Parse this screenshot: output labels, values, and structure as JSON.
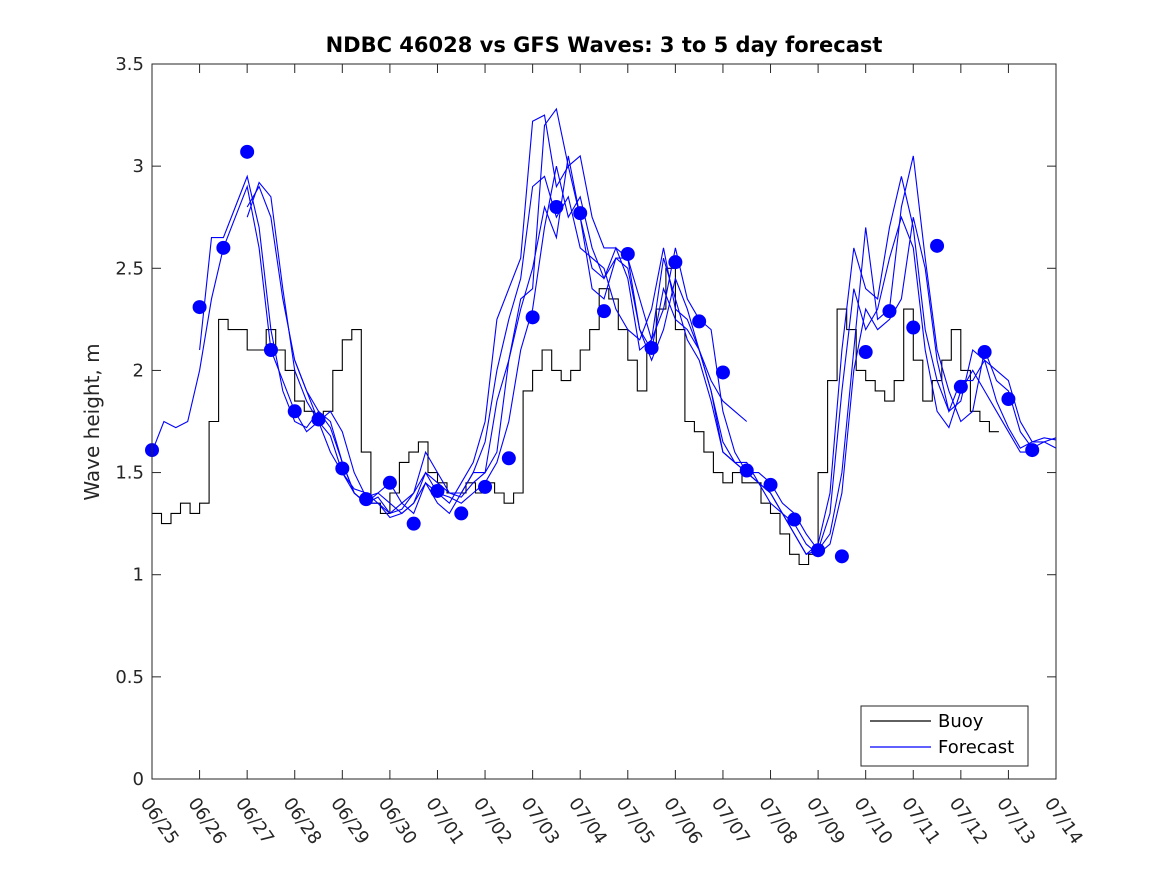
{
  "chart_data": {
    "type": "line",
    "title": "NDBC 46028 vs GFS Waves: 3 to 5 day forecast",
    "xlabel": "",
    "ylabel": "Wave height, m",
    "xlim": [
      "06/25",
      "07/14"
    ],
    "ylim": [
      0,
      3.5
    ],
    "x_ticks": [
      "06/25",
      "06/26",
      "06/27",
      "06/28",
      "06/29",
      "06/30",
      "07/01",
      "07/02",
      "07/03",
      "07/04",
      "07/05",
      "07/06",
      "07/07",
      "07/08",
      "07/09",
      "07/10",
      "07/11",
      "07/12",
      "07/13",
      "07/14"
    ],
    "y_ticks": [
      "0",
      "0.5",
      "1",
      "1.5",
      "2",
      "2.5",
      "3",
      "3.5"
    ],
    "grid": false,
    "legend_position": "bottom-right",
    "colors": {
      "buoy": "#000000",
      "forecast": "#0000ff",
      "axes": "#262626"
    },
    "series": [
      {
        "name": "Buoy",
        "style": "line",
        "x": [
          0,
          0.2,
          0.4,
          0.6,
          0.8,
          1.0,
          1.2,
          1.4,
          1.6,
          1.8,
          2.0,
          2.2,
          2.4,
          2.6,
          2.8,
          3.0,
          3.2,
          3.4,
          3.6,
          3.8,
          4.0,
          4.2,
          4.4,
          4.6,
          4.8,
          5.0,
          5.2,
          5.4,
          5.6,
          5.8,
          6.0,
          6.2,
          6.4,
          6.6,
          6.8,
          7.0,
          7.2,
          7.4,
          7.6,
          7.8,
          8.0,
          8.2,
          8.4,
          8.6,
          8.8,
          9.0,
          9.2,
          9.4,
          9.6,
          9.8,
          10.0,
          10.2,
          10.4,
          10.6,
          10.8,
          11.0,
          11.2,
          11.4,
          11.6,
          11.8,
          12.0,
          12.2,
          12.4,
          12.6,
          12.8,
          13.0,
          13.2,
          13.4,
          13.6,
          13.8,
          14.0,
          14.2,
          14.4,
          14.6,
          14.8,
          15.0,
          15.2,
          15.4,
          15.6,
          15.8,
          16.0,
          16.2,
          16.4,
          16.6,
          16.8,
          17.0,
          17.2,
          17.4,
          17.6,
          17.8,
          18.0,
          18.2,
          18.4,
          18.6,
          18.8,
          19.0
        ],
        "values": [
          1.3,
          1.25,
          1.3,
          1.35,
          1.3,
          1.35,
          1.75,
          2.25,
          2.2,
          2.2,
          2.1,
          2.1,
          2.2,
          2.1,
          2.0,
          1.85,
          1.8,
          1.75,
          1.8,
          2.0,
          2.15,
          2.2,
          1.6,
          1.35,
          1.3,
          1.4,
          1.55,
          1.6,
          1.65,
          1.5,
          1.45,
          1.4,
          1.4,
          1.45,
          1.4,
          1.45,
          1.4,
          1.35,
          1.4,
          1.9,
          2.0,
          2.1,
          2.0,
          1.95,
          2.0,
          2.1,
          2.2,
          2.4,
          2.35,
          2.2,
          2.05,
          1.9,
          2.1,
          2.3,
          2.5,
          2.2,
          1.75,
          1.7,
          1.6,
          1.5,
          1.45,
          1.5,
          1.45,
          1.45,
          1.35,
          1.3,
          1.2,
          1.1,
          1.05,
          1.1,
          1.5,
          1.95,
          2.3,
          2.2,
          2.0,
          1.95,
          1.9,
          1.85,
          1.95,
          2.3,
          2.05,
          1.85,
          1.95,
          2.05,
          2.2,
          2.0,
          1.8,
          1.75,
          1.7,
          1.7,
          null,
          null,
          null,
          null,
          null,
          null
        ]
      },
      {
        "name": "Forecast",
        "style": "line",
        "x": [
          0,
          0.25,
          0.5,
          0.75,
          1.0,
          1.25,
          1.5,
          1.75,
          2.0,
          2.25,
          2.5,
          2.75,
          3.0,
          3.25,
          3.5,
          3.75,
          4.0,
          4.25,
          4.5,
          4.75,
          5.0,
          5.25,
          5.5,
          5.75,
          6.0,
          6.25,
          6.5,
          6.75,
          7.0,
          7.25,
          7.5,
          7.75,
          8.0,
          8.25,
          8.5,
          8.75,
          9.0,
          9.25,
          9.5,
          9.75,
          10.0,
          10.25,
          10.5,
          10.75,
          11.0,
          11.25,
          11.5,
          11.75,
          12.0,
          12.25,
          12.5,
          12.75,
          13.0,
          13.25,
          13.5,
          13.75,
          14.0,
          14.25,
          14.5,
          14.75,
          15.0,
          15.25,
          15.5,
          15.75,
          16.0,
          16.25,
          16.5,
          16.75,
          17.0,
          17.25,
          17.5,
          17.75,
          18.0,
          18.25,
          18.5,
          18.75,
          19.0
        ],
        "values": [
          1.6,
          1.75,
          1.72,
          1.75,
          2.0,
          2.35,
          2.6,
          2.75,
          2.9,
          2.6,
          2.1,
          1.95,
          1.8,
          1.7,
          1.75,
          1.6,
          1.5,
          1.42,
          1.4,
          1.35,
          1.28,
          1.3,
          1.35,
          1.45,
          1.4,
          1.38,
          1.35,
          1.4,
          1.45,
          1.55,
          1.75,
          2.1,
          2.3,
          2.7,
          3.0,
          2.75,
          2.85,
          2.6,
          2.45,
          2.55,
          2.5,
          2.2,
          2.05,
          2.2,
          2.45,
          2.3,
          2.1,
          1.9,
          1.6,
          1.55,
          1.5,
          1.45,
          1.4,
          1.3,
          1.25,
          1.15,
          1.1,
          1.15,
          1.4,
          2.0,
          2.3,
          2.2,
          2.25,
          2.35,
          2.75,
          2.5,
          2.05,
          1.8,
          1.95,
          1.95,
          2.05,
          2.0,
          1.95,
          1.75,
          1.65,
          1.65,
          1.62
        ]
      },
      {
        "name": "Forecast",
        "style": "line",
        "x": [
          1.0,
          1.25,
          1.5,
          1.75,
          2.0,
          2.25,
          2.5,
          2.75,
          3.0,
          3.25,
          3.5,
          3.75,
          4.0,
          4.25,
          4.5,
          4.75,
          5.0,
          5.25,
          5.5,
          5.75,
          6.0,
          6.25,
          6.5,
          6.75,
          7.0,
          7.25,
          7.5,
          7.75,
          8.0,
          8.25,
          8.5,
          8.75,
          9.0,
          9.25,
          9.5,
          9.75,
          10.0,
          10.25,
          10.5,
          10.75,
          11.0,
          11.25,
          11.5,
          11.75,
          12.0,
          12.25,
          12.5,
          12.75,
          13.0,
          13.25,
          13.5,
          13.75,
          14.0,
          14.25,
          14.5,
          14.75,
          15.0,
          15.25,
          15.5,
          15.75,
          16.0,
          16.25,
          16.5,
          16.75,
          17.0,
          17.25,
          17.5,
          17.75,
          18.0,
          18.25,
          18.5,
          18.75,
          19.0
        ],
        "values": [
          2.1,
          2.65,
          2.65,
          2.8,
          2.95,
          2.7,
          2.2,
          1.9,
          1.75,
          1.72,
          1.8,
          1.72,
          1.55,
          1.4,
          1.35,
          1.35,
          1.3,
          1.35,
          1.4,
          1.5,
          1.45,
          1.4,
          1.38,
          1.45,
          1.5,
          1.6,
          2.05,
          2.35,
          2.4,
          3.2,
          3.28,
          3.0,
          3.05,
          2.75,
          2.6,
          2.6,
          2.55,
          2.35,
          2.15,
          2.3,
          2.6,
          2.35,
          2.25,
          2.2,
          1.8,
          1.6,
          1.5,
          1.5,
          1.45,
          1.35,
          1.3,
          1.2,
          1.12,
          1.2,
          1.5,
          2.1,
          2.7,
          2.25,
          2.3,
          2.8,
          3.05,
          2.55,
          2.1,
          1.9,
          1.75,
          1.8,
          2.1,
          1.95,
          1.9,
          1.7,
          1.62,
          1.65,
          1.67
        ]
      },
      {
        "name": "Forecast",
        "style": "line",
        "x": [
          2.0,
          2.25,
          2.5,
          2.75,
          3.0,
          3.25,
          3.5,
          3.75,
          4.0,
          4.25,
          4.5,
          4.75,
          5.0,
          5.25,
          5.5,
          5.75,
          6.0,
          6.25,
          6.5,
          6.75,
          7.0,
          7.25,
          7.5,
          7.75,
          8.0,
          8.25,
          8.5,
          8.75,
          9.0,
          9.25,
          9.5,
          9.75,
          10.0,
          10.25,
          10.5,
          10.75,
          11.0,
          11.25,
          11.5,
          11.75,
          12.0,
          12.25,
          12.5,
          12.75,
          13.0,
          13.25,
          13.5,
          13.75,
          14.0,
          14.25,
          14.5,
          14.75,
          15.0,
          15.25,
          15.5,
          15.75,
          16.0,
          16.25,
          16.5,
          16.75,
          17.0,
          17.25,
          17.5,
          17.75,
          18.0,
          18.25,
          18.5,
          18.75,
          19.0
        ],
        "values": [
          2.75,
          2.92,
          2.85,
          2.4,
          2.0,
          1.85,
          1.75,
          1.8,
          1.7,
          1.5,
          1.38,
          1.4,
          1.35,
          1.3,
          1.35,
          1.5,
          1.4,
          1.35,
          1.45,
          1.55,
          1.75,
          2.25,
          2.4,
          2.55,
          3.22,
          3.25,
          2.9,
          3.0,
          2.75,
          2.5,
          2.45,
          2.6,
          2.45,
          2.1,
          2.15,
          2.55,
          2.35,
          2.15,
          2.05,
          1.85,
          1.6,
          1.55,
          1.5,
          1.45,
          1.35,
          1.3,
          1.2,
          1.1,
          1.15,
          1.4,
          2.1,
          2.6,
          2.4,
          2.35,
          2.7,
          2.95,
          2.7,
          2.2,
          1.95,
          1.8,
          1.85,
          2.1,
          2.05,
          1.85,
          1.72,
          1.62,
          1.65,
          1.67,
          1.66
        ]
      },
      {
        "name": "Forecast",
        "style": "line",
        "x": [
          3.0,
          3.25,
          3.5,
          3.75,
          4.0,
          4.25,
          4.5,
          4.75,
          5.0,
          5.25,
          5.5,
          5.75,
          6.0,
          6.25,
          6.5,
          6.75,
          7.0,
          7.25,
          7.5,
          7.75,
          8.0,
          8.25,
          8.5,
          8.75,
          9.0,
          9.25,
          9.5,
          9.75,
          10.0,
          10.25,
          10.5,
          10.75,
          11.0,
          11.25,
          11.5,
          11.75,
          12.0,
          12.25,
          12.5,
          12.75,
          13.0,
          13.25,
          13.5,
          13.75,
          14.0,
          14.25,
          14.5,
          14.75,
          15.0,
          15.25,
          15.5,
          15.75,
          16.0,
          16.25,
          16.5,
          16.75,
          17.0,
          17.25,
          17.5,
          17.75,
          18.0,
          18.25,
          18.5
        ],
        "values": [
          2.05,
          1.9,
          1.8,
          1.75,
          1.55,
          1.4,
          1.35,
          1.4,
          1.45,
          1.35,
          1.3,
          1.45,
          1.35,
          1.3,
          1.4,
          1.5,
          1.5,
          1.85,
          2.05,
          2.3,
          2.5,
          2.8,
          2.65,
          3.05,
          2.75,
          2.4,
          2.35,
          2.55,
          2.55,
          2.2,
          2.1,
          2.4,
          2.25,
          2.2,
          2.1,
          1.9,
          1.65,
          1.55,
          1.55,
          1.45,
          1.4,
          1.3,
          1.2,
          1.1,
          1.12,
          1.3,
          1.9,
          2.4,
          2.2,
          2.3,
          2.55,
          2.75,
          2.6,
          2.1,
          1.8,
          1.72,
          1.9,
          2.0,
          1.9,
          1.8,
          1.7,
          1.6,
          1.6
        ]
      },
      {
        "name": "Forecast",
        "style": "line",
        "x": [
          2.0,
          2.25,
          2.5,
          2.75,
          3.0,
          3.25,
          3.5,
          3.75,
          4.0,
          4.25,
          4.5,
          4.75,
          5.0,
          5.25,
          5.5,
          5.75,
          6.0,
          6.25,
          6.5,
          6.75,
          7.0,
          7.25,
          7.5,
          7.75,
          8.0,
          8.25,
          8.5,
          8.75,
          9.0,
          9.25,
          9.5,
          9.75,
          10.0,
          10.25,
          10.5,
          10.75,
          11.0,
          11.25,
          11.5,
          11.75,
          12.0,
          12.25,
          12.5
        ],
        "values": [
          2.8,
          2.9,
          2.75,
          2.35,
          2.05,
          1.9,
          1.75,
          1.68,
          1.5,
          1.4,
          1.35,
          1.38,
          1.3,
          1.32,
          1.4,
          1.6,
          1.5,
          1.4,
          1.4,
          1.5,
          1.65,
          2.0,
          2.25,
          2.45,
          2.9,
          2.95,
          2.75,
          2.85,
          2.6,
          2.55,
          2.5,
          2.3,
          2.2,
          2.15,
          2.3,
          2.6,
          2.3,
          2.25,
          2.1,
          1.95,
          1.85,
          1.8,
          1.75
        ]
      },
      {
        "name": "Forecast",
        "style": "markers",
        "x": [
          0,
          1.0,
          1.5,
          2.0,
          2.5,
          3.0,
          3.5,
          4.0,
          4.5,
          5.0,
          5.5,
          6.0,
          6.5,
          7.0,
          7.5,
          8.0,
          8.5,
          9.0,
          9.5,
          10.0,
          10.5,
          11.0,
          11.5,
          12.0,
          12.5,
          13.0,
          13.5,
          14.0,
          14.5,
          15.0,
          15.5,
          16.0,
          16.5,
          17.0,
          17.5,
          18.0,
          18.5
        ],
        "values": [
          1.61,
          2.31,
          2.6,
          3.07,
          2.1,
          1.8,
          1.76,
          1.52,
          1.37,
          1.45,
          1.25,
          1.41,
          1.3,
          1.43,
          1.57,
          2.26,
          2.8,
          2.77,
          2.29,
          2.57,
          2.11,
          2.53,
          2.24,
          1.99,
          1.51,
          1.44,
          1.27,
          1.12,
          1.09,
          2.09,
          2.29,
          2.21,
          2.61,
          1.92,
          2.09,
          1.86,
          1.61
        ]
      }
    ]
  },
  "legend": {
    "items": [
      {
        "label": "Buoy",
        "color": "#000000"
      },
      {
        "label": "Forecast",
        "color": "#0000ff"
      }
    ]
  }
}
